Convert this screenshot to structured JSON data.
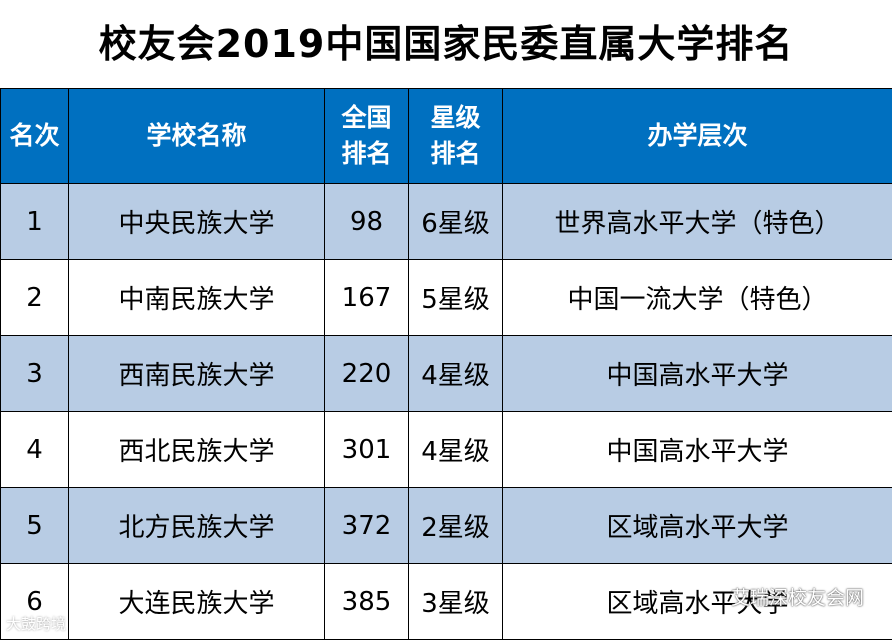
{
  "title": "校友会2019中国国家民委直属大学排名",
  "table": {
    "headers": [
      "名次",
      "学校名称",
      "全国排名",
      "星级排名",
      "办学层次"
    ],
    "rows": [
      {
        "rank": "1",
        "name": "中央民族大学",
        "national": "98",
        "star": "6星级",
        "level": "世界高水平大学（特色）"
      },
      {
        "rank": "2",
        "name": "中南民族大学",
        "national": "167",
        "star": "5星级",
        "level": "中国一流大学（特色）"
      },
      {
        "rank": "3",
        "name": "西南民族大学",
        "national": "220",
        "star": "4星级",
        "level": "中国高水平大学"
      },
      {
        "rank": "4",
        "name": "西北民族大学",
        "national": "301",
        "star": "4星级",
        "level": "中国高水平大学"
      },
      {
        "rank": "5",
        "name": "北方民族大学",
        "national": "372",
        "star": "2星级",
        "level": "区域高水平大学"
      },
      {
        "rank": "6",
        "name": "大连民族大学",
        "national": "385",
        "star": "3星级",
        "level": "区域高水平大学"
      }
    ]
  },
  "watermarks": {
    "left": "大鼓跨境",
    "right": "艾瑞深校友会网"
  },
  "colors": {
    "header_bg": "#0070c0",
    "header_text": "#ffffff",
    "shaded_row": "#b8cce4"
  }
}
